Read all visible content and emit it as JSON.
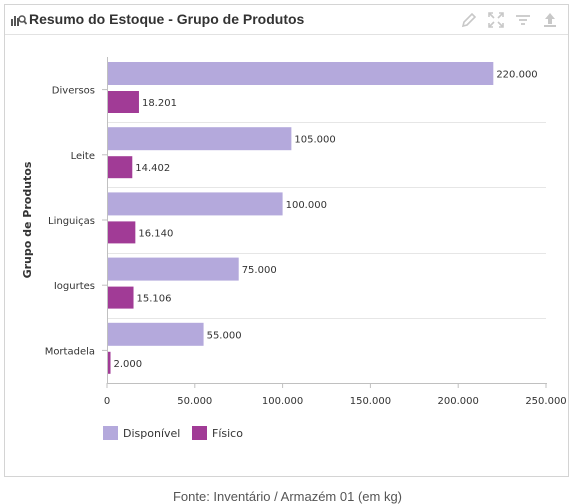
{
  "widget": {
    "title": "Resumo do Estoque - Grupo de Produtos",
    "title_icon": "bar-chart-search-icon",
    "toolbar": [
      "edit-icon",
      "expand-icon",
      "filter-icon",
      "export-icon"
    ]
  },
  "legend": [
    {
      "label": "Disponível",
      "color": "#b4a9dc"
    },
    {
      "label": "Físico",
      "color": "#a13b96"
    }
  ],
  "footer": "Fonte: Inventário / Armazém 01 (em kg)",
  "chart_data": {
    "type": "bar",
    "orientation": "horizontal",
    "ylabel": "Grupo de Produtos",
    "xlabel": "",
    "categories": [
      "Diversos",
      "Leite",
      "Linguiças",
      "Iogurtes",
      "Mortadela"
    ],
    "series": [
      {
        "name": "Disponível",
        "color": "#b4a9dc",
        "values": [
          220000,
          105000,
          100000,
          75000,
          55000
        ],
        "labels": [
          "220.000",
          "105.000",
          "100.000",
          "75.000",
          "55.000"
        ]
      },
      {
        "name": "Físico",
        "color": "#a13b96",
        "values": [
          18201,
          14402,
          16140,
          15106,
          2000
        ],
        "labels": [
          "18.201",
          "14.402",
          "16.140",
          "15.106",
          "2.000"
        ]
      }
    ],
    "xlim": [
      0,
      250000
    ],
    "ticks": [
      0,
      50000,
      100000,
      150000,
      200000,
      250000
    ],
    "tick_labels": [
      "0",
      "50.000",
      "100.000",
      "150.000",
      "200.000",
      "250.000"
    ],
    "grid": true,
    "legend_position": "bottom-left"
  }
}
